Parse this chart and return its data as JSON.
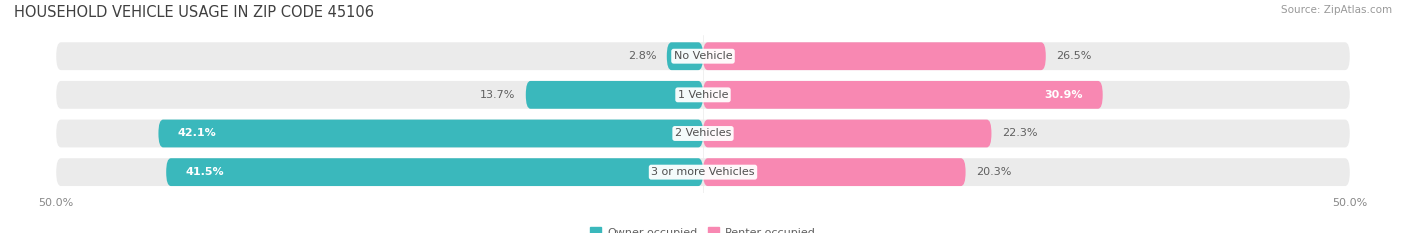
{
  "title": "HOUSEHOLD VEHICLE USAGE IN ZIP CODE 45106",
  "source": "Source: ZipAtlas.com",
  "categories": [
    "No Vehicle",
    "1 Vehicle",
    "2 Vehicles",
    "3 or more Vehicles"
  ],
  "owner_values": [
    2.8,
    13.7,
    42.1,
    41.5
  ],
  "renter_values": [
    26.5,
    30.9,
    22.3,
    20.3
  ],
  "owner_color": "#3ab8bc",
  "renter_color": "#f888b2",
  "bar_bg_color": "#ebebeb",
  "bar_shadow_color": "#d8d8d8",
  "axis_limit": 50.0,
  "title_fontsize": 10.5,
  "source_fontsize": 7.5,
  "value_fontsize": 8,
  "cat_fontsize": 8,
  "tick_fontsize": 8,
  "legend_fontsize": 8,
  "background_color": "#ffffff"
}
